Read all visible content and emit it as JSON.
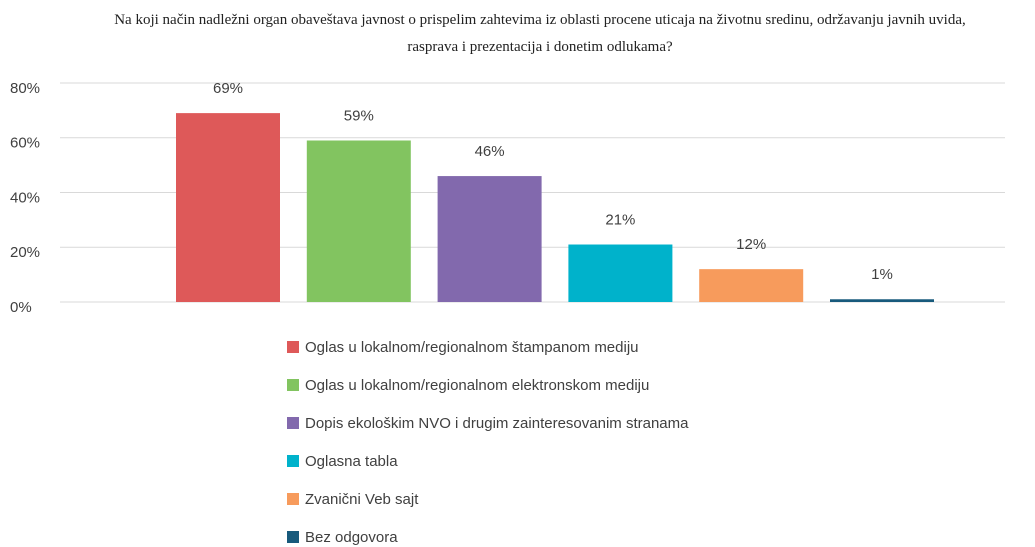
{
  "chart_data": {
    "type": "bar",
    "title": "Na koji način nadležni organ obaveštava javnost  o prispelim zahtevima iz oblasti procene uticaja na životnu sredinu, održavanju javnih uvida, rasprava i prezentacija i donetim odlukama?",
    "series": [
      {
        "name": "Oglas u lokalnom/regionalnom štampanom mediju",
        "color": "#de5959",
        "values": [
          69
        ],
        "value_labels": [
          "69%"
        ]
      },
      {
        "name": "Oglas u lokalnom/regionalnom elektronskom mediju",
        "color": "#82c460",
        "values": [
          59
        ],
        "value_labels": [
          "59%"
        ]
      },
      {
        "name": "Dopis ekološkim NVO i drugim zainteresovanim stranama",
        "color": "#8269ad",
        "values": [
          46
        ],
        "value_labels": [
          "46%"
        ]
      },
      {
        "name": "Oglasna tabla",
        "color": "#00b2cb",
        "values": [
          21
        ],
        "value_labels": [
          "21%"
        ]
      },
      {
        "name": "Zvanični Veb sajt",
        "color": "#f79b5c",
        "values": [
          12
        ],
        "value_labels": [
          "12%"
        ]
      },
      {
        "name": "Bez odgovora",
        "color": "#185a7c",
        "values": [
          1
        ],
        "value_labels": [
          "1%"
        ]
      }
    ],
    "ylim": [
      0,
      80
    ],
    "yticks": [
      {
        "value": 0,
        "label": "0%"
      },
      {
        "value": 20,
        "label": "20%"
      },
      {
        "value": 40,
        "label": "40%"
      },
      {
        "value": 60,
        "label": "60%"
      },
      {
        "value": 80,
        "label": "80%"
      }
    ],
    "grid": true,
    "legend": "bottom"
  }
}
